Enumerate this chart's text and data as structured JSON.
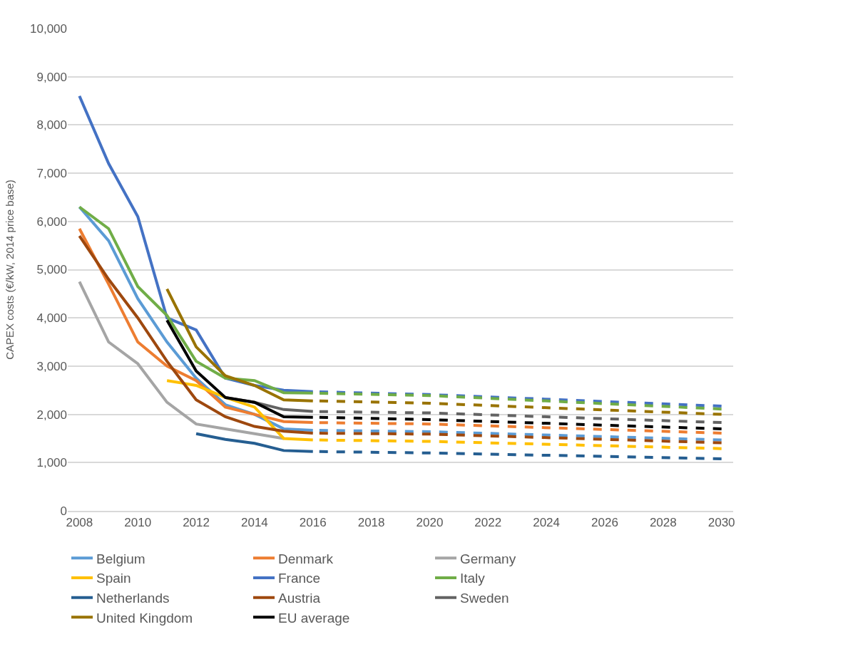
{
  "chart_data": {
    "type": "line",
    "ylabel": "CAPEX costs (€/kW, 2014 price base)",
    "x": [
      2008,
      2009,
      2010,
      2011,
      2012,
      2013,
      2014,
      2015,
      2016
    ],
    "xlim": [
      2007.6,
      2030.4
    ],
    "xticks": [
      2008,
      2010,
      2012,
      2014,
      2016,
      2018,
      2020,
      2022,
      2024,
      2026,
      2028,
      2030
    ],
    "ylim": [
      0,
      10000
    ],
    "yticks": [
      {
        "value": 0,
        "label": "0"
      },
      {
        "value": 1000,
        "label": "1,000"
      },
      {
        "value": 2000,
        "label": "2,000"
      },
      {
        "value": 3000,
        "label": "3,000"
      },
      {
        "value": 4000,
        "label": "4,000"
      },
      {
        "value": 5000,
        "label": "5,000"
      },
      {
        "value": 6000,
        "label": "6,000"
      },
      {
        "value": 7000,
        "label": "7,000"
      },
      {
        "value": 8000,
        "label": "8,000"
      },
      {
        "value": 9000,
        "label": "9,000"
      },
      {
        "value": 10000,
        "label": "10,000"
      }
    ],
    "grid": "y",
    "legend": "bottom",
    "marker": "none",
    "line_style": "solid",
    "series": [
      {
        "name": "Belgium",
        "color": "#5b9bd5",
        "values": [
          6300,
          5600,
          4400,
          3500,
          2750,
          2200,
          2000,
          1700,
          1670
        ]
      },
      {
        "name": "Denmark",
        "color": "#ed7d31",
        "values": [
          5850,
          4700,
          3500,
          3000,
          2700,
          2150,
          2000,
          1850,
          1830
        ]
      },
      {
        "name": "Germany",
        "color": "#a5a5a5",
        "values": [
          4750,
          3500,
          3050,
          2250,
          1800,
          1700,
          1600,
          1500,
          null
        ]
      },
      {
        "name": "Spain",
        "color": "#ffc000",
        "values": [
          null,
          null,
          null,
          2700,
          2600,
          2350,
          2150,
          1500,
          1470
        ]
      },
      {
        "name": "France",
        "color": "#4472c4",
        "values": [
          8600,
          7200,
          6100,
          4000,
          3750,
          2750,
          2600,
          2500,
          2470
        ]
      },
      {
        "name": "Italy",
        "color": "#70ad47",
        "values": [
          6300,
          5850,
          4650,
          4050,
          3100,
          2750,
          2700,
          2450,
          2440
        ]
      },
      {
        "name": "Netherlands",
        "color": "#255e91",
        "values": [
          null,
          null,
          null,
          null,
          1600,
          1480,
          1400,
          1250,
          1230
        ]
      },
      {
        "name": "Austria",
        "color": "#9e480e",
        "values": [
          5700,
          4800,
          4000,
          3100,
          2300,
          1950,
          1750,
          1650,
          1610
        ]
      },
      {
        "name": "Sweden",
        "color": "#636363",
        "values": [
          null,
          null,
          null,
          null,
          null,
          2350,
          2250,
          2100,
          2060
        ]
      },
      {
        "name": "United Kingdom",
        "color": "#997300",
        "values": [
          null,
          null,
          null,
          4600,
          3400,
          2800,
          2600,
          2300,
          2280
        ]
      },
      {
        "name": "EU average",
        "color": "#000000",
        "values": [
          null,
          null,
          null,
          3950,
          2900,
          2350,
          2250,
          1950,
          1940
        ]
      },
      {
        "color": "#5b9bd5",
        "line_style": "dashed",
        "x": [
          2016,
          2020,
          2030
        ],
        "values": [
          1670,
          1640,
          1470
        ]
      },
      {
        "color": "#ed7d31",
        "line_style": "dashed",
        "x": [
          2016,
          2020,
          2030
        ],
        "values": [
          1830,
          1800,
          1610
        ]
      },
      {
        "color": "#ffc000",
        "line_style": "dashed",
        "x": [
          2016,
          2020,
          2030
        ],
        "values": [
          1470,
          1440,
          1290
        ]
      },
      {
        "color": "#4472c4",
        "line_style": "dashed",
        "x": [
          2016,
          2020,
          2030
        ],
        "values": [
          2470,
          2410,
          2170
        ]
      },
      {
        "color": "#70ad47",
        "line_style": "dashed",
        "x": [
          2016,
          2020,
          2030
        ],
        "values": [
          2440,
          2390,
          2110
        ]
      },
      {
        "color": "#255e91",
        "line_style": "dashed",
        "x": [
          2016,
          2020,
          2030
        ],
        "values": [
          1230,
          1200,
          1080
        ]
      },
      {
        "color": "#9e480e",
        "line_style": "dashed",
        "x": [
          2016,
          2020,
          2030
        ],
        "values": [
          1610,
          1590,
          1410
        ]
      },
      {
        "color": "#636363",
        "line_style": "dashed",
        "x": [
          2016,
          2020,
          2030
        ],
        "values": [
          2060,
          2030,
          1830
        ]
      },
      {
        "color": "#997300",
        "line_style": "dashed",
        "x": [
          2016,
          2020,
          2030
        ],
        "values": [
          2280,
          2230,
          2000
        ]
      },
      {
        "color": "#000000",
        "line_style": "dashed",
        "x": [
          2016,
          2020,
          2030
        ],
        "values": [
          1940,
          1890,
          1700
        ]
      }
    ]
  }
}
